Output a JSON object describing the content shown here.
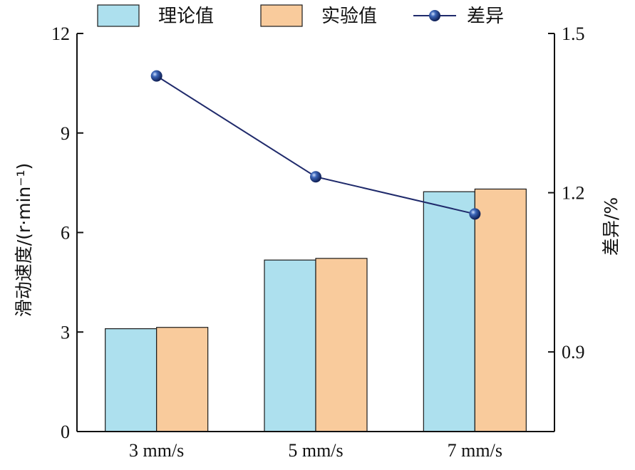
{
  "chart_data": {
    "type": "bar",
    "categories": [
      "3 mm/s",
      "5 mm/s",
      "7 mm/s"
    ],
    "series": [
      {
        "name": "理论值",
        "type": "bar",
        "axis": "left",
        "color": "#ade0ee",
        "values": [
          3.1,
          5.17,
          7.23
        ]
      },
      {
        "name": "实验值",
        "type": "bar",
        "axis": "left",
        "color": "#f9cb9c",
        "values": [
          3.14,
          5.22,
          7.31
        ]
      },
      {
        "name": "差异",
        "type": "line",
        "axis": "right",
        "color": "#1f2a6b",
        "values": [
          1.42,
          1.23,
          1.16
        ]
      }
    ],
    "ylabel_left": "滑动速度/(r·min⁻¹)",
    "ylabel_right": "差异/%",
    "ylim_left": [
      0,
      12
    ],
    "yticks_left": [
      "0",
      "3",
      "6",
      "9",
      "12"
    ],
    "ylim_right": [
      0.75,
      1.5
    ],
    "yticks_right": [
      {
        "label": "0.9",
        "value": 0.9
      },
      {
        "label": "1.2",
        "value": 1.2
      },
      {
        "label": "1.5",
        "value": 1.5
      }
    ],
    "legend_position": "top",
    "grid": false
  }
}
